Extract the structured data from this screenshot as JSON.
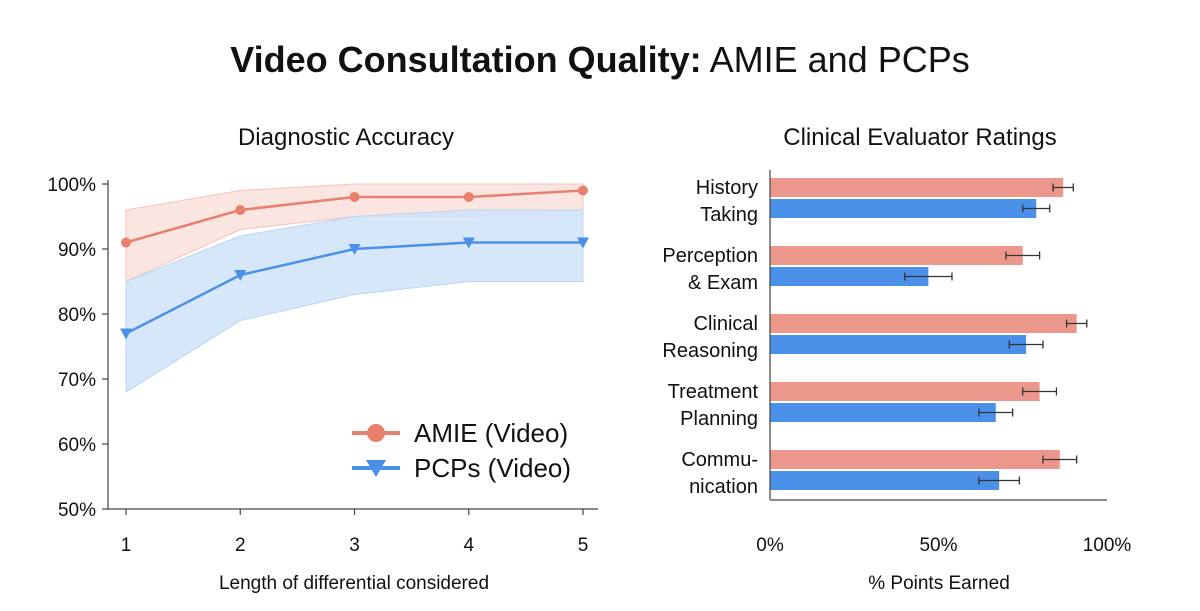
{
  "title": {
    "bold": "Video Consultation Quality:",
    "rest": " AMIE and PCPs"
  },
  "colors": {
    "amie": "#e8806e",
    "amie_bar": "#ec978b",
    "pcp": "#4a90e8",
    "pcp_fill": "#cfe3f9",
    "amie_fill": "#f9dcd7",
    "axis": "#444444",
    "errorbar": "#333333"
  },
  "chart_data": [
    {
      "type": "line",
      "title": "Diagnostic Accuracy",
      "xlabel": "Length of differential considered",
      "ylabel": "",
      "x": [
        1,
        2,
        3,
        4,
        5
      ],
      "x_tick_labels": [
        "1",
        "2",
        "3",
        "4",
        "5"
      ],
      "ylim": [
        50,
        100
      ],
      "y_ticks": [
        50,
        60,
        70,
        80,
        90,
        100
      ],
      "y_tick_labels": [
        "50%",
        "60%",
        "70%",
        "80%",
        "90%",
        "100%"
      ],
      "grid": false,
      "legend_position": "lower-right",
      "series": [
        {
          "name": "AMIE (Video)",
          "marker": "circle",
          "color_key": "amie",
          "values": [
            91,
            96,
            98,
            98,
            99
          ],
          "ci_low": [
            85,
            93,
            95,
            95,
            96
          ],
          "ci_high": [
            96,
            99,
            100,
            100,
            100
          ]
        },
        {
          "name": "PCPs (Video)",
          "marker": "triangle-down",
          "color_key": "pcp",
          "values": [
            77,
            86,
            90,
            91,
            91
          ],
          "ci_low": [
            68,
            79,
            83,
            85,
            85
          ],
          "ci_high": [
            85,
            92,
            95,
            96,
            96
          ]
        }
      ]
    },
    {
      "type": "bar",
      "orientation": "horizontal",
      "title": "Clinical Evaluator Ratings",
      "xlabel": "% Points Earned",
      "ylabel": "",
      "xlim": [
        0,
        100
      ],
      "x_ticks": [
        0,
        50,
        100
      ],
      "x_tick_labels": [
        "0%",
        "50%",
        "100%"
      ],
      "grid": false,
      "categories": [
        [
          "History",
          "Taking"
        ],
        [
          "Perception",
          "& Exam"
        ],
        [
          "Clinical",
          "Reasoning"
        ],
        [
          "Treatment",
          "Planning"
        ],
        [
          "Commu-",
          "nication"
        ]
      ],
      "series": [
        {
          "color_key": "amie_bar",
          "values": [
            87,
            75,
            91,
            80,
            86
          ],
          "err": [
            3,
            5,
            3,
            5,
            5
          ]
        },
        {
          "color_key": "pcp",
          "values": [
            79,
            47,
            76,
            67,
            68
          ],
          "err": [
            4,
            7,
            5,
            5,
            6
          ]
        }
      ]
    }
  ]
}
